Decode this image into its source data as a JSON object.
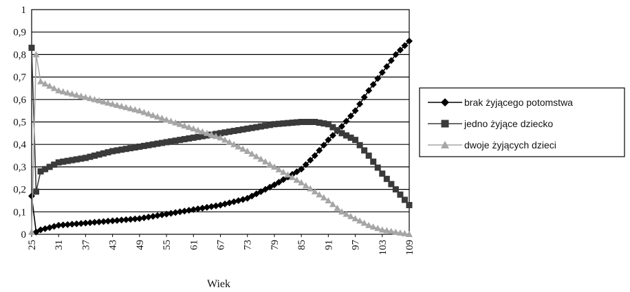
{
  "chart_data": {
    "type": "line",
    "title": "",
    "xlabel": "Wiek",
    "ylabel": "",
    "ylim": [
      0,
      1
    ],
    "y_ticks": [
      "0",
      "0,1",
      "0,2",
      "0,3",
      "0,4",
      "0,5",
      "0,6",
      "0,7",
      "0,8",
      "0,9",
      "1"
    ],
    "x_ticks": [
      "25",
      "31",
      "37",
      "43",
      "49",
      "55",
      "61",
      "67",
      "73",
      "79",
      "85",
      "91",
      "97",
      "103",
      "109"
    ],
    "x": [
      25,
      26,
      27,
      31,
      37,
      43,
      49,
      55,
      61,
      67,
      73,
      79,
      85,
      88,
      91,
      94,
      97,
      100,
      103,
      106,
      109
    ],
    "grid": true,
    "legend_position": "right",
    "series": [
      {
        "name": "brak żyjącego potomstwa",
        "color": "#000000",
        "marker": "diamond",
        "values": [
          0.17,
          0.01,
          0.02,
          0.04,
          0.05,
          0.06,
          0.07,
          0.09,
          0.11,
          0.13,
          0.16,
          0.22,
          0.29,
          0.35,
          0.42,
          0.48,
          0.55,
          0.64,
          0.72,
          0.8,
          0.86
        ]
      },
      {
        "name": "jedno żyjące dziecko",
        "color": "#3a3a3a",
        "marker": "square",
        "values": [
          0.83,
          0.19,
          0.28,
          0.32,
          0.34,
          0.37,
          0.39,
          0.41,
          0.43,
          0.45,
          0.47,
          0.49,
          0.5,
          0.5,
          0.49,
          0.45,
          0.42,
          0.35,
          0.27,
          0.2,
          0.13
        ]
      },
      {
        "name": "dwoje żyjących dzieci",
        "color": "#a6a6a6",
        "marker": "triangle",
        "values": [
          0.01,
          0.8,
          0.68,
          0.64,
          0.61,
          0.58,
          0.55,
          0.51,
          0.47,
          0.43,
          0.37,
          0.3,
          0.23,
          0.19,
          0.15,
          0.1,
          0.07,
          0.04,
          0.02,
          0.01,
          0.0
        ]
      }
    ]
  }
}
